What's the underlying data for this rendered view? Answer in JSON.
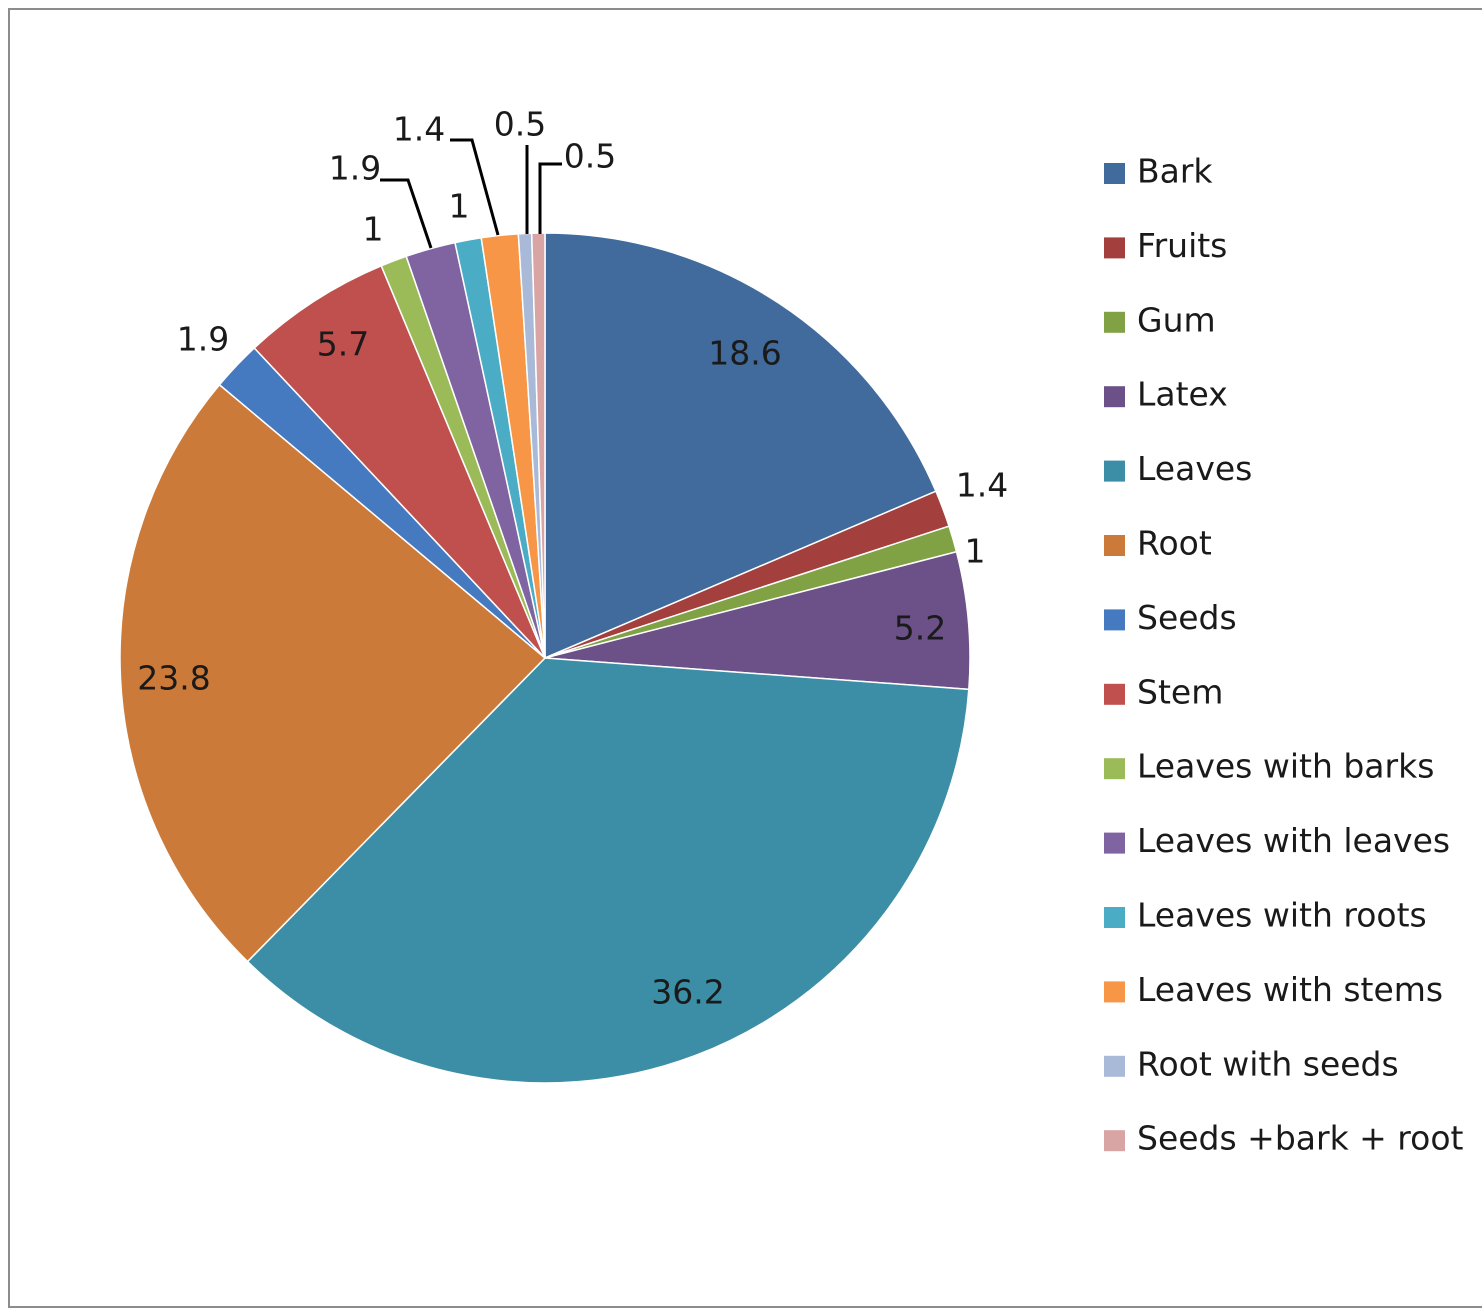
{
  "chart_data": {
    "type": "pie",
    "title": "",
    "legend_position": "right",
    "slices": [
      {
        "name": "Bark",
        "value": 18.6,
        "label": "18.6",
        "color": "#416b9c"
      },
      {
        "name": "Fruits",
        "value": 1.4,
        "label": "1.4",
        "color": "#a33f3c"
      },
      {
        "name": "Gum",
        "value": 1,
        "label": "1",
        "color": "#80a244"
      },
      {
        "name": "Latex",
        "value": 5.2,
        "label": "5.2",
        "color": "#6b5187"
      },
      {
        "name": "Leaves",
        "value": 36.2,
        "label": "36.2",
        "color": "#3c8ea6"
      },
      {
        "name": "Root",
        "value": 23.8,
        "label": "23.8",
        "color": "#cc7a39"
      },
      {
        "name": "Seeds",
        "value": 1.9,
        "label": "1.9",
        "color": "#4579c0"
      },
      {
        "name": "Stem",
        "value": 5.7,
        "label": "5.7",
        "color": "#c0504d"
      },
      {
        "name": "Leaves with barks",
        "value": 1,
        "label": "1",
        "color": "#9bbb59"
      },
      {
        "name": "Leaves with leaves",
        "value": 1.9,
        "label": "1.9",
        "color": "#8064a2"
      },
      {
        "name": "Leaves with roots",
        "value": 1,
        "label": "1",
        "color": "#4bacc6"
      },
      {
        "name": "Leaves with stems",
        "value": 1.4,
        "label": "1.4",
        "color": "#f79646"
      },
      {
        "name": "Root with seeds",
        "value": 0.5,
        "label": "0.5",
        "color": "#a9b9d8"
      },
      {
        "name": "Seeds +bark + root",
        "value": 0.5,
        "label": "0.5",
        "color": "#d9a5a4"
      }
    ]
  }
}
